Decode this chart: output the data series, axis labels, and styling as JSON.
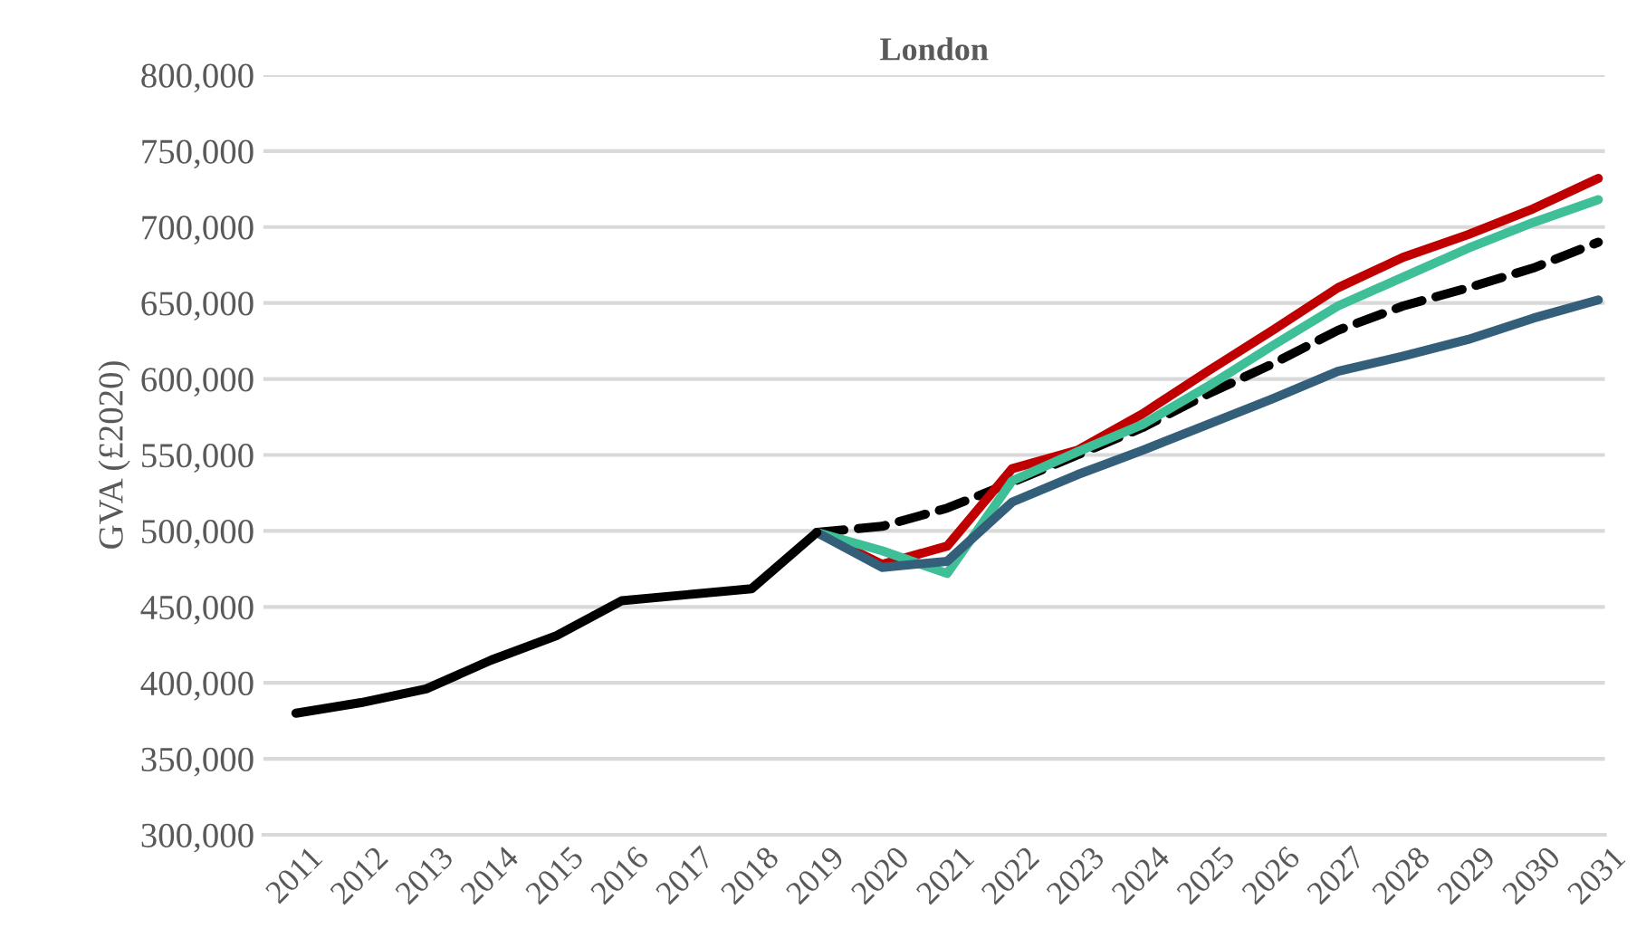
{
  "chart_data": {
    "type": "line",
    "title": "London",
    "ylabel": "GVA (£2020)",
    "categories": [
      "2011",
      "2012",
      "2013",
      "2014",
      "2015",
      "2016",
      "2017",
      "2018",
      "2019",
      "2020",
      "2021",
      "2022",
      "2023",
      "2024",
      "2025",
      "2026",
      "2027",
      "2028",
      "2029",
      "2030",
      "2031"
    ],
    "series": [
      {
        "color": "#000000",
        "line_style": "dashed",
        "values": [
          null,
          null,
          null,
          null,
          null,
          null,
          null,
          null,
          499000,
          503000,
          515000,
          532000,
          550000,
          568000,
          590000,
          610000,
          632000,
          648000,
          660000,
          673000,
          690000
        ]
      },
      {
        "color": "#c00000",
        "values": [
          null,
          null,
          null,
          null,
          null,
          null,
          null,
          null,
          499000,
          478000,
          490000,
          541000,
          553000,
          577000,
          605000,
          632000,
          660000,
          680000,
          695000,
          712000,
          732000
        ]
      },
      {
        "color": "#3fbf97",
        "values": [
          null,
          null,
          null,
          null,
          null,
          null,
          null,
          null,
          499000,
          487000,
          472000,
          533000,
          552000,
          570000,
          595000,
          622000,
          648000,
          667000,
          686000,
          703000,
          718000
        ]
      },
      {
        "color": "#345f7a",
        "values": [
          null,
          null,
          null,
          null,
          null,
          null,
          null,
          null,
          499000,
          476000,
          480000,
          519000,
          537000,
          553000,
          570000,
          587000,
          605000,
          615000,
          626000,
          640000,
          652000
        ]
      },
      {
        "color": "#000000",
        "line_style": "solid",
        "values": [
          380000,
          387000,
          396000,
          415000,
          431000,
          454000,
          458000,
          462000,
          499000,
          null,
          null,
          null,
          null,
          null,
          null,
          null,
          null,
          null,
          null,
          null,
          null
        ]
      }
    ],
    "ylim": [
      300000,
      800000
    ],
    "yticks": [
      {
        "value": 300000,
        "label": "300,000"
      },
      {
        "value": 350000,
        "label": "350,000"
      },
      {
        "value": 400000,
        "label": "400,000"
      },
      {
        "value": 450000,
        "label": "450,000"
      },
      {
        "value": 500000,
        "label": "500,000"
      },
      {
        "value": 550000,
        "label": "550,000"
      },
      {
        "value": 600000,
        "label": "600,000"
      },
      {
        "value": 650000,
        "label": "650,000"
      },
      {
        "value": 700000,
        "label": "700,000"
      },
      {
        "value": 750000,
        "label": "750,000"
      },
      {
        "value": 800000,
        "label": "800,000"
      }
    ],
    "grid": "y",
    "line_style": "solid",
    "marker": "none",
    "legend": false
  }
}
